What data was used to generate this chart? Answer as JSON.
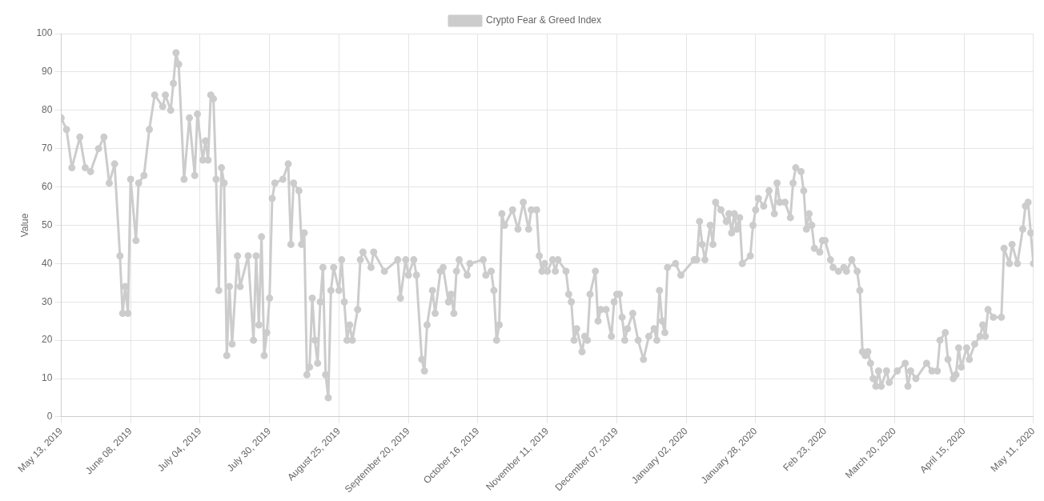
{
  "chart_data": {
    "type": "line",
    "ylabel": "Value",
    "legend": "top",
    "grid": true,
    "marker": "circle",
    "line_style": "solid",
    "xlim": [
      "2019-05-13",
      "2020-05-11"
    ],
    "xticks": [
      {
        "value": "2019-05-13",
        "label": "May 13, 2019"
      },
      {
        "value": "2019-06-08",
        "label": "June 08, 2019"
      },
      {
        "value": "2019-07-04",
        "label": "July 04, 2019"
      },
      {
        "value": "2019-07-30",
        "label": "July 30, 2019"
      },
      {
        "value": "2019-08-25",
        "label": "August 25, 2019"
      },
      {
        "value": "2019-09-20",
        "label": "September 20, 2019"
      },
      {
        "value": "2019-10-16",
        "label": "October 16, 2019"
      },
      {
        "value": "2019-11-11",
        "label": "November 11, 2019"
      },
      {
        "value": "2019-12-07",
        "label": "December 07, 2019"
      },
      {
        "value": "2020-01-02",
        "label": "January 02, 2020"
      },
      {
        "value": "2020-01-28",
        "label": "January 28, 2020"
      },
      {
        "value": "2020-02-23",
        "label": "Feb 23, 2020"
      },
      {
        "value": "2020-03-20",
        "label": "March 20, 2020"
      },
      {
        "value": "2020-04-15",
        "label": "April 15, 2020"
      },
      {
        "value": "2020-05-11",
        "label": "May 11, 2020"
      }
    ],
    "ylim": [
      0,
      100
    ],
    "yticks": [
      0,
      10,
      20,
      30,
      40,
      50,
      60,
      70,
      80,
      90,
      100
    ],
    "series": [
      {
        "name": "Crypto Fear & Greed Index",
        "color": "#cccccc",
        "x": [
          "2019-05-13",
          "2019-05-15",
          "2019-05-17",
          "2019-05-20",
          "2019-05-22",
          "2019-05-24",
          "2019-05-27",
          "2019-05-29",
          "2019-05-31",
          "2019-06-02",
          "2019-06-04",
          "2019-06-05",
          "2019-06-06",
          "2019-06-07",
          "2019-06-08",
          "2019-06-10",
          "2019-06-11",
          "2019-06-13",
          "2019-06-15",
          "2019-06-17",
          "2019-06-20",
          "2019-06-21",
          "2019-06-23",
          "2019-06-24",
          "2019-06-25",
          "2019-06-26",
          "2019-06-28",
          "2019-06-30",
          "2019-07-02",
          "2019-07-03",
          "2019-07-05",
          "2019-07-06",
          "2019-07-07",
          "2019-07-08",
          "2019-07-09",
          "2019-07-10",
          "2019-07-11",
          "2019-07-12",
          "2019-07-13",
          "2019-07-14",
          "2019-07-15",
          "2019-07-16",
          "2019-07-18",
          "2019-07-19",
          "2019-07-22",
          "2019-07-24",
          "2019-07-25",
          "2019-07-26",
          "2019-07-27",
          "2019-07-28",
          "2019-07-29",
          "2019-07-30",
          "2019-07-31",
          "2019-08-01",
          "2019-08-04",
          "2019-08-06",
          "2019-08-07",
          "2019-08-08",
          "2019-08-10",
          "2019-08-11",
          "2019-08-12",
          "2019-08-13",
          "2019-08-14",
          "2019-08-15",
          "2019-08-16",
          "2019-08-17",
          "2019-08-18",
          "2019-08-19",
          "2019-08-20",
          "2019-08-21",
          "2019-08-22",
          "2019-08-23",
          "2019-08-25",
          "2019-08-26",
          "2019-08-27",
          "2019-08-28",
          "2019-08-29",
          "2019-08-30",
          "2019-09-01",
          "2019-09-02",
          "2019-09-03",
          "2019-09-06",
          "2019-09-07",
          "2019-09-11",
          "2019-09-16",
          "2019-09-17",
          "2019-09-19",
          "2019-09-20",
          "2019-09-22",
          "2019-09-23",
          "2019-09-25",
          "2019-09-26",
          "2019-09-27",
          "2019-09-29",
          "2019-09-30",
          "2019-10-02",
          "2019-10-03",
          "2019-10-05",
          "2019-10-06",
          "2019-10-07",
          "2019-10-08",
          "2019-10-09",
          "2019-10-12",
          "2019-10-13",
          "2019-10-18",
          "2019-10-19",
          "2019-10-21",
          "2019-10-22",
          "2019-10-23",
          "2019-10-24",
          "2019-10-25",
          "2019-10-26",
          "2019-10-29",
          "2019-10-31",
          "2019-11-02",
          "2019-11-04",
          "2019-11-05",
          "2019-11-07",
          "2019-11-08",
          "2019-11-09",
          "2019-11-10",
          "2019-11-11",
          "2019-11-13",
          "2019-11-14",
          "2019-11-15",
          "2019-11-18",
          "2019-11-19",
          "2019-11-20",
          "2019-11-21",
          "2019-11-22",
          "2019-11-24",
          "2019-11-25",
          "2019-11-26",
          "2019-11-27",
          "2019-11-29",
          "2019-11-30",
          "2019-12-01",
          "2019-12-03",
          "2019-12-05",
          "2019-12-06",
          "2019-12-07",
          "2019-12-08",
          "2019-12-09",
          "2019-12-10",
          "2019-12-11",
          "2019-12-13",
          "2019-12-15",
          "2019-12-17",
          "2019-12-19",
          "2019-12-21",
          "2019-12-22",
          "2019-12-23",
          "2019-12-24",
          "2019-12-25",
          "2019-12-26",
          "2019-12-29",
          "2019-12-31",
          "2020-01-05",
          "2020-01-06",
          "2020-01-07",
          "2020-01-08",
          "2020-01-09",
          "2020-01-11",
          "2020-01-12",
          "2020-01-13",
          "2020-01-15",
          "2020-01-17",
          "2020-01-18",
          "2020-01-19",
          "2020-01-20",
          "2020-01-21",
          "2020-01-22",
          "2020-01-23",
          "2020-01-26",
          "2020-01-27",
          "2020-01-28",
          "2020-01-29",
          "2020-01-31",
          "2020-02-02",
          "2020-02-04",
          "2020-02-05",
          "2020-02-06",
          "2020-02-08",
          "2020-02-10",
          "2020-02-11",
          "2020-02-12",
          "2020-02-14",
          "2020-02-15",
          "2020-02-16",
          "2020-02-17",
          "2020-02-18",
          "2020-02-19",
          "2020-02-21",
          "2020-02-22",
          "2020-02-23",
          "2020-02-25",
          "2020-02-26",
          "2020-02-28",
          "2020-03-01",
          "2020-03-02",
          "2020-03-04",
          "2020-03-06",
          "2020-03-07",
          "2020-03-08",
          "2020-03-09",
          "2020-03-10",
          "2020-03-11",
          "2020-03-12",
          "2020-03-13",
          "2020-03-14",
          "2020-03-15",
          "2020-03-17",
          "2020-03-18",
          "2020-03-21",
          "2020-03-24",
          "2020-03-25",
          "2020-03-26",
          "2020-03-28",
          "2020-04-01",
          "2020-04-03",
          "2020-04-05",
          "2020-04-06",
          "2020-04-08",
          "2020-04-09",
          "2020-04-11",
          "2020-04-12",
          "2020-04-13",
          "2020-04-14",
          "2020-04-16",
          "2020-04-17",
          "2020-04-19",
          "2020-04-21",
          "2020-04-22",
          "2020-04-23",
          "2020-04-24",
          "2020-04-26",
          "2020-04-29",
          "2020-04-30",
          "2020-05-02",
          "2020-05-03",
          "2020-05-05",
          "2020-05-07",
          "2020-05-08",
          "2020-05-09",
          "2020-05-10",
          "2020-05-11"
        ],
        "values": [
          78,
          75,
          65,
          73,
          65,
          64,
          70,
          73,
          61,
          66,
          42,
          27,
          34,
          27,
          62,
          46,
          61,
          63,
          75,
          84,
          81,
          84,
          80,
          87,
          95,
          92,
          62,
          78,
          63,
          79,
          67,
          72,
          67,
          84,
          83,
          62,
          33,
          65,
          61,
          16,
          34,
          19,
          42,
          34,
          42,
          20,
          42,
          24,
          47,
          16,
          22,
          31,
          57,
          61,
          62,
          66,
          45,
          61,
          59,
          45,
          48,
          11,
          13,
          31,
          20,
          14,
          30,
          39,
          11,
          5,
          33,
          39,
          33,
          41,
          30,
          20,
          24,
          20,
          28,
          41,
          43,
          39,
          43,
          38,
          41,
          31,
          41,
          37,
          41,
          37,
          15,
          12,
          24,
          33,
          27,
          38,
          39,
          30,
          32,
          27,
          38,
          41,
          37,
          40,
          41,
          37,
          38,
          33,
          20,
          24,
          53,
          50,
          54,
          49,
          56,
          49,
          54,
          54,
          42,
          38,
          40,
          38,
          41,
          38,
          41,
          38,
          32,
          30,
          20,
          23,
          17,
          21,
          20,
          32,
          38,
          25,
          28,
          28,
          21,
          30,
          32,
          32,
          26,
          20,
          23,
          27,
          20,
          15,
          21,
          23,
          20,
          33,
          25,
          22,
          39,
          40,
          37,
          41,
          41,
          51,
          45,
          41,
          50,
          45,
          56,
          54,
          51,
          53,
          48,
          53,
          49,
          52,
          40,
          42,
          50,
          54,
          57,
          55,
          59,
          53,
          61,
          56,
          56,
          52,
          61,
          65,
          64,
          59,
          49,
          53,
          50,
          44,
          43,
          46,
          46,
          41,
          39,
          38,
          39,
          38,
          41,
          38,
          33,
          17,
          16,
          17,
          14,
          10,
          8,
          12,
          8,
          12,
          9,
          12,
          14,
          8,
          12,
          10,
          14,
          12,
          12,
          20,
          22,
          15,
          10,
          11,
          18,
          13,
          18,
          15,
          19,
          21,
          24,
          21,
          28,
          26,
          26,
          44,
          40,
          45,
          40,
          49,
          55,
          56,
          48,
          40
        ]
      }
    ]
  }
}
